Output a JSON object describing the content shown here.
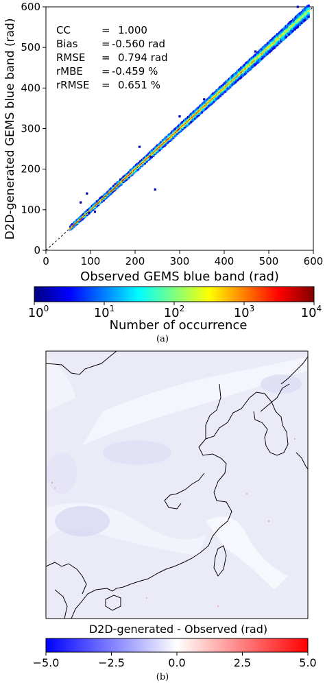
{
  "chart_data": [
    {
      "type": "heatmap",
      "subtype": "2d-histogram-density-scatter",
      "xlabel": "Observed GEMS blue band (rad)",
      "ylabel": "D2D-generated GEMS blue band (rad)",
      "xlim": [
        0,
        600
      ],
      "ylim": [
        0,
        600
      ],
      "xticks": [
        "0",
        "100",
        "200",
        "300",
        "400",
        "500",
        "600"
      ],
      "yticks": [
        "0",
        "100",
        "200",
        "300",
        "400",
        "500",
        "600"
      ],
      "reference_line": "1:1 dashed",
      "stats": [
        {
          "label": "CC",
          "value": "1.000"
        },
        {
          "label": "Bias",
          "value": "-0.560 rad"
        },
        {
          "label": "RMSE",
          "value": "0.794 rad"
        },
        {
          "label": "rMBE",
          "value": "-0.459 %"
        },
        {
          "label": "rRMSE",
          "value": "0.651 %"
        }
      ],
      "data_range_x": [
        55,
        590
      ],
      "colorbar": {
        "label": "Number of occurrence",
        "scale": "log",
        "range": [
          1,
          10000
        ],
        "tick_bases": [
          "10",
          "10",
          "10",
          "10",
          "10"
        ],
        "tick_exponents": [
          "0",
          "1",
          "2",
          "3",
          "4"
        ],
        "colormap": "jet"
      },
      "panel_label": "(a)"
    },
    {
      "type": "heatmap",
      "subtype": "map-difference",
      "title": "D2D-generated - Observed (rad)",
      "colorbar": {
        "range": [
          -5.0,
          5.0
        ],
        "ticks": [
          "−5.0",
          "−2.5",
          "0.0",
          "2.5",
          "5.0"
        ],
        "colormap": "bwr"
      },
      "panel_label": "(b)"
    }
  ],
  "colors": {
    "jet": [
      "#00007f",
      "#0000ff",
      "#007fff",
      "#00ffff",
      "#7fff7f",
      "#ffff00",
      "#ff7f00",
      "#ff0000",
      "#7f0000"
    ],
    "bwr": [
      "#0000ff",
      "#ffffff",
      "#ff0000"
    ],
    "map_background": "#ebebf8",
    "coastline": "#000000"
  }
}
